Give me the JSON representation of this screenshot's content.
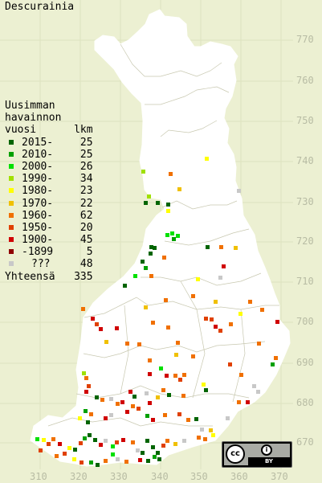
{
  "title": "Descurainia",
  "legend": {
    "header_lines": [
      "Uusimman",
      "havainnon",
      "vuosi      lkm"
    ],
    "rows": [
      {
        "label": "2015-",
        "count": "25",
        "color": "#006400"
      },
      {
        "label": "2010-",
        "count": "25",
        "color": "#00a000"
      },
      {
        "label": "2000-",
        "count": "26",
        "color": "#00e000"
      },
      {
        "label": "1990-",
        "count": "34",
        "color": "#a0e000"
      },
      {
        "label": "1980-",
        "count": "23",
        "color": "#ffff00"
      },
      {
        "label": "1970-",
        "count": "22",
        "color": "#f0c000"
      },
      {
        "label": "1960-",
        "count": "62",
        "color": "#f07000"
      },
      {
        "label": "1950-",
        "count": "20",
        "color": "#e04000"
      },
      {
        "label": "1900-",
        "count": "45",
        "color": "#d00000"
      },
      {
        "label": "-1899",
        "count": "5",
        "color": "#900000"
      },
      {
        "label": "???",
        "count": "48",
        "color": "#c8c8c8"
      }
    ],
    "total_label": "Yhteensä",
    "total_count": "335"
  },
  "axes": {
    "y_ticks": [
      "770",
      "760",
      "750",
      "740",
      "730",
      "720",
      "710",
      "700",
      "690",
      "680",
      "670"
    ],
    "x_ticks": [
      "310",
      "320",
      "330",
      "340",
      "350",
      "360",
      "370"
    ]
  },
  "license": {
    "cc": "cc",
    "by": "BY"
  }
}
